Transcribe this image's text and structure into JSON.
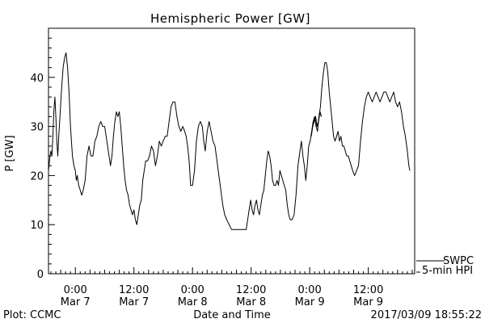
{
  "chart_data": {
    "type": "line",
    "title": "Hemispheric Power [GW]",
    "ylabel": "P [GW]",
    "xlabel": "Date and Time",
    "ylim": [
      0,
      50
    ],
    "y_ticks": [
      0,
      10,
      20,
      30,
      40
    ],
    "y_tick_labels": [
      "0",
      "10",
      "20",
      "30",
      "40"
    ],
    "xlim_hours": [
      -5.5,
      69.5
    ],
    "x_ticks": [
      {
        "t": 0,
        "time": "0:00",
        "date": "Mar 7"
      },
      {
        "t": 12,
        "time": "12:00",
        "date": "Mar 7"
      },
      {
        "t": 24,
        "time": "0:00",
        "date": "Mar 8"
      },
      {
        "t": 36,
        "time": "12:00",
        "date": "Mar 8"
      },
      {
        "t": 48,
        "time": "0:00",
        "date": "Mar 9"
      },
      {
        "t": 60,
        "time": "12:00",
        "date": "Mar 9"
      }
    ],
    "grid": false,
    "series": [
      {
        "name": "SWPC",
        "points": [
          [
            -5.5,
            21
          ],
          [
            -5.2,
            24
          ],
          [
            -5.0,
            25
          ],
          [
            -4.8,
            24
          ],
          [
            -4.6,
            28
          ],
          [
            -4.4,
            33
          ],
          [
            -4.2,
            36
          ],
          [
            -4.0,
            32
          ],
          [
            -3.8,
            27
          ],
          [
            -3.6,
            24
          ],
          [
            -3.4,
            28
          ],
          [
            -3.1,
            33
          ],
          [
            -2.8,
            38
          ],
          [
            -2.5,
            42
          ],
          [
            -2.2,
            44
          ],
          [
            -1.9,
            45
          ],
          [
            -1.6,
            42
          ],
          [
            -1.3,
            37
          ],
          [
            -1.0,
            30
          ],
          [
            -0.6,
            24
          ],
          [
            -0.3,
            22
          ],
          [
            0.0,
            21
          ],
          [
            0.2,
            19
          ],
          [
            0.4,
            20
          ],
          [
            0.7,
            18
          ],
          [
            1.0,
            17
          ],
          [
            1.3,
            16
          ],
          [
            1.6,
            17
          ],
          [
            2.0,
            19
          ],
          [
            2.4,
            24
          ],
          [
            2.8,
            26
          ],
          [
            3.2,
            24
          ],
          [
            3.6,
            24
          ],
          [
            4.0,
            27
          ],
          [
            4.4,
            28
          ],
          [
            4.8,
            30
          ],
          [
            5.2,
            31
          ],
          [
            5.6,
            30
          ],
          [
            6.0,
            30
          ],
          [
            6.3,
            28
          ],
          [
            6.6,
            26
          ],
          [
            6.9,
            24
          ],
          [
            7.2,
            22
          ],
          [
            7.5,
            24
          ],
          [
            7.8,
            28
          ],
          [
            8.1,
            31
          ],
          [
            8.4,
            33
          ],
          [
            8.7,
            32
          ],
          [
            9.0,
            33
          ],
          [
            9.3,
            30
          ],
          [
            9.6,
            26
          ],
          [
            9.9,
            22
          ],
          [
            10.2,
            19
          ],
          [
            10.5,
            17
          ],
          [
            10.8,
            16
          ],
          [
            11.1,
            14
          ],
          [
            11.4,
            13
          ],
          [
            11.7,
            12
          ],
          [
            12.0,
            13
          ],
          [
            12.3,
            11
          ],
          [
            12.6,
            10
          ],
          [
            12.9,
            12
          ],
          [
            13.2,
            14
          ],
          [
            13.5,
            15
          ],
          [
            13.8,
            19
          ],
          [
            14.1,
            21
          ],
          [
            14.4,
            23
          ],
          [
            14.8,
            23
          ],
          [
            15.2,
            24
          ],
          [
            15.6,
            26
          ],
          [
            16.0,
            25
          ],
          [
            16.4,
            22
          ],
          [
            16.8,
            24
          ],
          [
            17.2,
            27
          ],
          [
            17.6,
            26
          ],
          [
            18.0,
            27
          ],
          [
            18.4,
            28
          ],
          [
            18.8,
            28
          ],
          [
            19.2,
            31
          ],
          [
            19.6,
            34
          ],
          [
            20.0,
            35
          ],
          [
            20.4,
            35
          ],
          [
            20.8,
            32
          ],
          [
            21.2,
            30
          ],
          [
            21.6,
            29
          ],
          [
            22.0,
            30
          ],
          [
            22.4,
            29
          ],
          [
            22.7,
            28
          ],
          [
            23.0,
            26
          ],
          [
            23.3,
            23
          ],
          [
            23.6,
            18
          ],
          [
            24.0,
            18
          ],
          [
            24.4,
            21
          ],
          [
            24.8,
            27
          ],
          [
            25.2,
            30
          ],
          [
            25.6,
            31
          ],
          [
            26.0,
            30
          ],
          [
            26.3,
            27
          ],
          [
            26.6,
            25
          ],
          [
            27.0,
            29
          ],
          [
            27.4,
            31
          ],
          [
            27.8,
            29
          ],
          [
            28.2,
            27
          ],
          [
            28.6,
            26
          ],
          [
            29.0,
            23
          ],
          [
            29.4,
            20
          ],
          [
            29.8,
            17
          ],
          [
            30.2,
            14
          ],
          [
            30.6,
            12
          ],
          [
            31.0,
            11
          ],
          [
            31.5,
            10
          ],
          [
            32.0,
            9
          ],
          [
            32.5,
            9
          ],
          [
            33.0,
            9
          ],
          [
            33.5,
            9
          ],
          [
            34.0,
            9
          ],
          [
            34.5,
            9
          ],
          [
            35.0,
            9
          ],
          [
            35.3,
            11
          ],
          [
            35.6,
            13
          ],
          [
            35.9,
            15
          ],
          [
            36.2,
            13
          ],
          [
            36.5,
            12
          ],
          [
            36.8,
            14
          ],
          [
            37.1,
            15
          ],
          [
            37.4,
            13
          ],
          [
            37.7,
            12
          ],
          [
            38.0,
            14
          ],
          [
            38.3,
            16
          ],
          [
            38.6,
            17
          ],
          [
            38.9,
            20
          ],
          [
            39.2,
            23
          ],
          [
            39.5,
            25
          ],
          [
            39.8,
            24
          ],
          [
            40.1,
            22
          ],
          [
            40.4,
            19
          ],
          [
            40.7,
            18
          ],
          [
            41.0,
            18
          ],
          [
            41.3,
            19
          ],
          [
            41.6,
            18
          ],
          [
            41.9,
            21
          ],
          [
            42.2,
            20
          ],
          [
            42.5,
            19
          ],
          [
            42.8,
            18
          ],
          [
            43.1,
            17
          ],
          [
            43.4,
            14
          ],
          [
            43.7,
            12
          ],
          [
            44.0,
            11
          ],
          [
            44.4,
            11
          ],
          [
            44.8,
            12
          ],
          [
            45.2,
            16
          ],
          [
            45.6,
            22
          ],
          [
            46.0,
            25
          ],
          [
            46.3,
            27
          ],
          [
            46.6,
            24
          ],
          [
            46.9,
            22
          ],
          [
            47.2,
            19
          ],
          [
            47.5,
            22
          ],
          [
            47.8,
            26
          ],
          [
            48.1,
            27
          ],
          [
            48.4,
            29
          ],
          [
            48.7,
            31
          ],
          [
            49.0,
            32
          ],
          [
            49.3,
            30
          ],
          [
            49.6,
            29
          ],
          [
            49.9,
            32
          ],
          [
            50.2,
            34
          ],
          [
            50.5,
            38
          ],
          [
            50.8,
            41
          ],
          [
            51.1,
            43
          ],
          [
            51.4,
            43
          ],
          [
            51.7,
            41
          ],
          [
            52.0,
            37
          ],
          [
            52.3,
            34
          ],
          [
            52.6,
            31
          ],
          [
            52.9,
            28
          ],
          [
            53.2,
            27
          ],
          [
            53.5,
            28
          ],
          [
            53.8,
            29
          ],
          [
            54.1,
            27
          ],
          [
            54.4,
            28
          ],
          [
            54.7,
            26
          ],
          [
            55.0,
            26
          ],
          [
            55.3,
            25
          ],
          [
            55.6,
            24
          ],
          [
            55.9,
            24
          ],
          [
            56.2,
            23
          ],
          [
            56.5,
            22
          ],
          [
            56.8,
            21
          ],
          [
            57.2,
            20
          ],
          [
            57.6,
            21
          ],
          [
            58.0,
            22
          ],
          [
            58.4,
            27
          ],
          [
            58.8,
            31
          ],
          [
            59.2,
            34
          ],
          [
            59.6,
            36
          ],
          [
            60.0,
            37
          ],
          [
            60.4,
            36
          ],
          [
            60.8,
            35
          ],
          [
            61.2,
            36
          ],
          [
            61.6,
            37
          ],
          [
            62.0,
            36
          ],
          [
            62.4,
            35
          ],
          [
            62.8,
            36
          ],
          [
            63.2,
            37
          ],
          [
            63.6,
            37
          ],
          [
            64.0,
            36
          ],
          [
            64.4,
            35
          ],
          [
            64.8,
            36
          ],
          [
            65.2,
            37
          ],
          [
            65.6,
            35
          ],
          [
            66.0,
            34
          ],
          [
            66.4,
            35
          ],
          [
            66.8,
            33
          ],
          [
            67.2,
            30
          ],
          [
            67.6,
            28
          ],
          [
            68.0,
            25
          ],
          [
            68.3,
            22
          ],
          [
            68.5,
            21
          ]
        ]
      },
      {
        "name": "5-min HPI",
        "points": [
          [
            48.3,
            28
          ],
          [
            48.6,
            30
          ],
          [
            48.9,
            31
          ],
          [
            49.2,
            32
          ],
          [
            49.5,
            30
          ],
          [
            49.8,
            31
          ],
          [
            50.1,
            33
          ],
          [
            50.4,
            32
          ]
        ]
      }
    ]
  },
  "legend": {
    "items": [
      {
        "label": "SWPC"
      },
      {
        "label": "5-min HPI"
      }
    ]
  },
  "footer": {
    "plot_credit": "Plot: CCMC",
    "timestamp": "2017/03/09 18:55:22"
  }
}
